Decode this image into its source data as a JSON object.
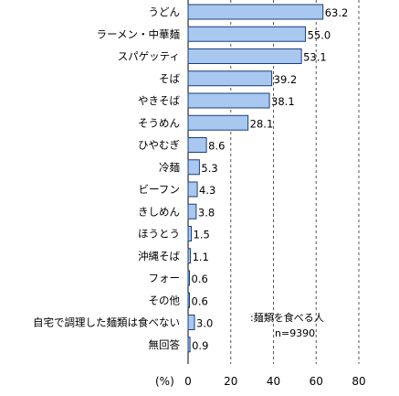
{
  "chart_data": {
    "type": "bar",
    "orientation": "horizontal",
    "categories": [
      "うどん",
      "ラーメン・中華麺",
      "スパゲッティ",
      "そば",
      "やきそば",
      "そうめん",
      "ひやむぎ",
      "冷麺",
      "ビーフン",
      "きしめん",
      "ほうとう",
      "沖縄そば",
      "フォー",
      "その他",
      "自宅で調理した麺類は食べない",
      "無回答"
    ],
    "values": [
      63.2,
      55.0,
      53.1,
      39.2,
      38.1,
      28.1,
      8.6,
      5.3,
      4.3,
      3.8,
      1.5,
      1.1,
      0.6,
      0.6,
      3.0,
      0.9
    ],
    "value_labels": [
      "63.2",
      "55.0",
      "53.1",
      "39.2",
      "38.1",
      "28.1",
      "8.6",
      "5.3",
      "4.3",
      "3.8",
      "1.5",
      "1.1",
      "0.6",
      "0.6",
      "3.0",
      "0.9"
    ],
    "xlim": [
      0,
      80
    ],
    "xticks": [
      0,
      20,
      40,
      60,
      80
    ],
    "xunit": "(%)",
    "grid": "dashed-vertical",
    "bar_color": "#a8c8f0",
    "bar_border": "#1a3f7a",
    "note_title": ":麺類を食べる人",
    "note_n": "n=9390"
  }
}
